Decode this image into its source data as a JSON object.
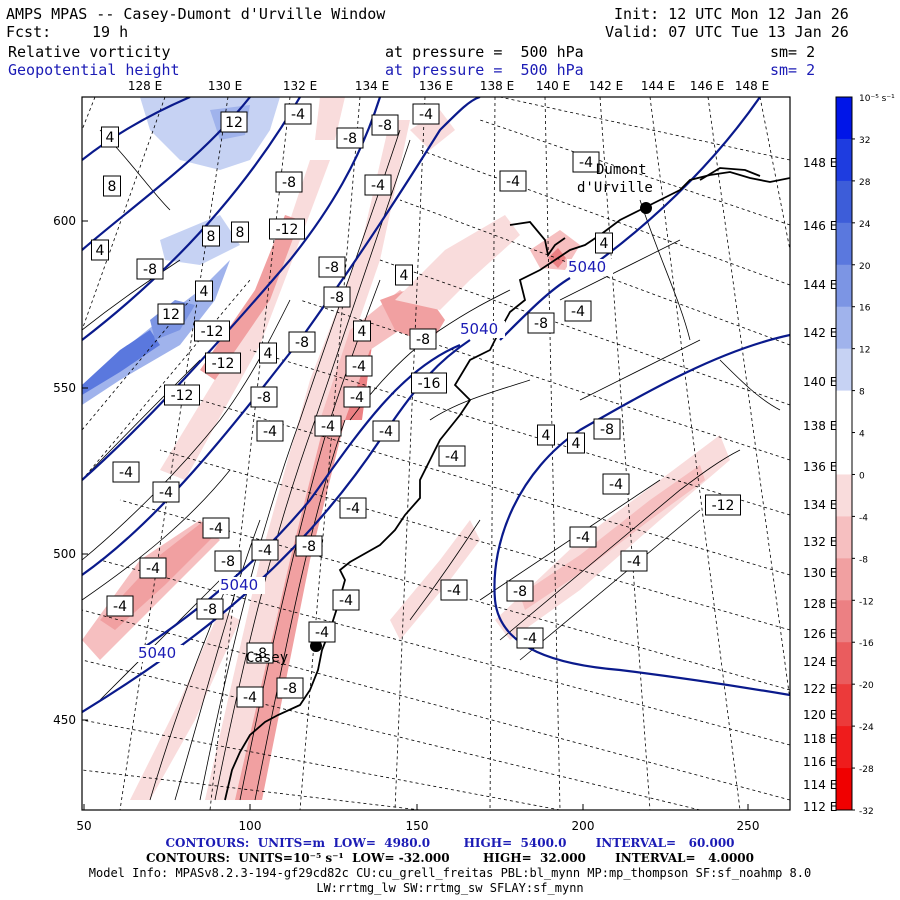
{
  "header": {
    "title": "AMPS MPAS -- Casey-Dumont d'Urville Window",
    "fcst_label": "Fcst:",
    "fcst_value": "19 h",
    "init": "Init: 12 UTC Mon 12 Jan 26",
    "valid": "Valid: 07 UTC Tue 13 Jan 26",
    "field1": {
      "name": "Relative vorticity",
      "level": "at pressure =  500 hPa",
      "sm": "sm= 2"
    },
    "field2": {
      "name": "Geopotential height",
      "level": "at pressure =  500 hPa",
      "sm": "sm= 2"
    }
  },
  "map": {
    "lon_labels": [
      "128 E",
      "130 E",
      "132 E",
      "134 E",
      "136 E",
      "138 E",
      "140 E",
      "142 E",
      "144 E",
      "146 E",
      "148 E"
    ],
    "right_lon_labels": [
      "148 E",
      "146 E",
      "144 E",
      "142 E",
      "140 E",
      "138 E",
      "136 E",
      "134 E",
      "132 E",
      "130 E",
      "128 E",
      "126 E",
      "124 E",
      "122 E",
      "120 E",
      "118 E",
      "116 E",
      "114 E",
      "112 E"
    ],
    "x_ticks": [
      "50",
      "100",
      "150",
      "200",
      "250"
    ],
    "y_ticks": [
      "600",
      "550",
      "500",
      "450"
    ],
    "stations": [
      {
        "name": "Dumont\nd'Urville"
      },
      {
        "name": "Casey"
      }
    ],
    "height_labels": [
      "5040",
      "5040",
      "5040",
      "5040"
    ],
    "vorticity_labels": [
      "4",
      "12",
      "-4",
      "-8",
      "-4",
      "-8",
      "8",
      "-8",
      "-4",
      "-4",
      "-4",
      "8",
      "8",
      "-12",
      "4",
      "4",
      "-8",
      "-8",
      "4",
      "4",
      "-4",
      "12",
      "-8",
      "-8",
      "-12",
      "-8",
      "4",
      "4",
      "-8",
      "-4",
      "-12",
      "-16",
      "-4",
      "-12",
      "-8",
      "-4",
      "-4",
      "-4",
      "4",
      "4",
      "-8",
      "-4",
      "-4",
      "-4",
      "-4",
      "-12",
      "-4",
      "-4",
      "-4",
      "-8",
      "-4",
      "-8",
      "-4",
      "-4",
      "-4",
      "-4",
      "-8",
      "-8",
      "-4",
      "-4",
      "-8",
      "-4",
      "-8",
      "-4"
    ]
  },
  "colorbar": {
    "unit_label": "10⁻⁵ s⁻¹",
    "ticks": [
      "32",
      "28",
      "24",
      "20",
      "16",
      "12",
      "8",
      "4",
      "0",
      "-4",
      "-8",
      "-12",
      "-16",
      "-20",
      "-24",
      "-28",
      "-32"
    ],
    "colors": [
      "#0015e8",
      "#1e3ce0",
      "#3d5dd9",
      "#5a78de",
      "#7c95e4",
      "#a0b3ec",
      "#c6d2f3",
      "#ffffff",
      "#ffffff",
      "#f9dcdc",
      "#f6bfc0",
      "#f1a0a1",
      "#ec8083",
      "#ea5c5e",
      "#ec3a3a",
      "#ef1c1c",
      "#f00000"
    ]
  },
  "footer": {
    "line1": "CONTOURS:  UNITS=m  LOW=  4980.0        HIGH=  5400.0       INTERVAL=   60.000",
    "line2": "CONTOURS:  UNITS=10⁻⁵ s⁻¹  LOW= -32.000        HIGH=  32.000       INTERVAL=   4.0000",
    "line3": "Model Info: MPASv8.2.3-194-gf29cd82c CU:cu_grell_freitas PBL:bl_mynn MP:mp_thompson SF:sf_noahmp 8.0",
    "line4": "LW:rrtmg_lw SW:rrtmg_sw SFLAY:sf_mynn"
  }
}
